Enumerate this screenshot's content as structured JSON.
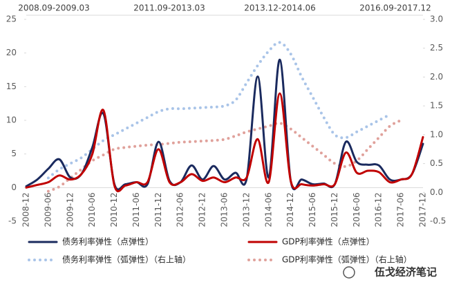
{
  "chart_data": {
    "type": "line",
    "annotations": [
      "2008.09-2009.03",
      "2011.09-2013.03",
      "2013.12-2014.06",
      "2016.09-2017.12"
    ],
    "categories": [
      "2008-12",
      null,
      "2009-06",
      null,
      "2009-12",
      null,
      "2010-06",
      null,
      "2010-12",
      null,
      "2011-06",
      null,
      "2011-12",
      null,
      "2012-06",
      null,
      "2012-12",
      null,
      "2013-06",
      null,
      "2013-12",
      null,
      "2014-06",
      null,
      "2014-12",
      null,
      "2015-06",
      null,
      "2015-12",
      null,
      "2016-06",
      null,
      "2016-12",
      null,
      "2017-06",
      null,
      "2017-12"
    ],
    "ylim": [
      -5,
      25
    ],
    "yticks": [
      -5,
      0,
      5,
      10,
      15,
      20,
      25
    ],
    "y2lim": [
      -0.5,
      3.0
    ],
    "y2ticks": [
      -0.5,
      {
        "value": 0,
        "label": "0.0"
      },
      0.5,
      {
        "value": 1,
        "label": "1.0"
      },
      1.5,
      {
        "value": 2,
        "label": "2.0"
      },
      2.5,
      {
        "value": 3,
        "label": "3.0"
      }
    ],
    "series": [
      {
        "name": "债务利率弹性（点弹性）",
        "color": "#1a2a5e",
        "style": "solid",
        "values": [
          0.2,
          1.2,
          2.8,
          4.2,
          1.5,
          2,
          6,
          11,
          0.5,
          0.5,
          0.8,
          0.5,
          6.8,
          1,
          0.8,
          3.3,
          1.2,
          3.2,
          1.2,
          2.2,
          1.3,
          16.5,
          1.5,
          19,
          1,
          1.2,
          0.5,
          0.6,
          0.5,
          6.8,
          3.8,
          3.4,
          3.3,
          1.2,
          1.2,
          2,
          6.5
        ]
      },
      {
        "name": "GDP利率弹性（点弹性）",
        "color": "#c00000",
        "style": "solid",
        "values": [
          0,
          0.4,
          0.8,
          1.8,
          1.2,
          2,
          5,
          11.5,
          0.3,
          0.3,
          0.8,
          0.8,
          5.7,
          0.8,
          0.8,
          2,
          1,
          1.5,
          0.8,
          1.5,
          1.5,
          7.2,
          0.8,
          14,
          1,
          0.5,
          0.3,
          0.5,
          0.5,
          5.2,
          2.2,
          2.5,
          2.3,
          0.8,
          1.2,
          2,
          7.5
        ]
      },
      {
        "name": "债务利率弹性（弧弹性）（右上轴）",
        "color": "#a9c4e8",
        "style": "dotted",
        "axis": "y2",
        "values": [
          null,
          null,
          0.25,
          0.4,
          0.5,
          0.6,
          0.75,
          0.9,
          1.0,
          1.1,
          1.2,
          1.3,
          1.4,
          1.45,
          1.45,
          1.46,
          1.47,
          1.48,
          1.5,
          1.6,
          1.9,
          2.2,
          2.45,
          2.6,
          2.4,
          2.0,
          1.65,
          1.3,
          1.0,
          0.95,
          1.05,
          1.15,
          1.25,
          1.35,
          null,
          null,
          null
        ]
      },
      {
        "name": "GDP利率弹性（弧弹性）（右上轴）",
        "color": "#e0a19b",
        "style": "dotted",
        "axis": "y2",
        "values": [
          null,
          null,
          0.02,
          0.1,
          0.25,
          0.4,
          0.55,
          0.65,
          0.75,
          0.78,
          0.8,
          0.82,
          0.83,
          0.85,
          0.87,
          0.88,
          0.89,
          0.9,
          0.92,
          0.98,
          1.05,
          1.1,
          1.15,
          1.2,
          1.1,
          0.95,
          0.8,
          0.65,
          0.5,
          0.45,
          0.55,
          0.75,
          0.95,
          1.15,
          1.25,
          null,
          null
        ]
      }
    ]
  },
  "watermark": "伍戈经济笔记"
}
